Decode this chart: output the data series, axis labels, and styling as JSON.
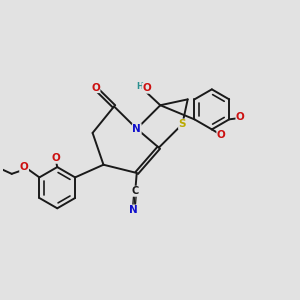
{
  "bg_color": "#e2e2e2",
  "bond_color": "#1a1a1a",
  "bond_width": 1.4,
  "dbo": 0.055,
  "atom_colors": {
    "C": "#1a1a1a",
    "N": "#1010cc",
    "O": "#cc1010",
    "S": "#bbaa00",
    "H": "#2a9090"
  },
  "fs": 7.5,
  "sfs": 6.0
}
